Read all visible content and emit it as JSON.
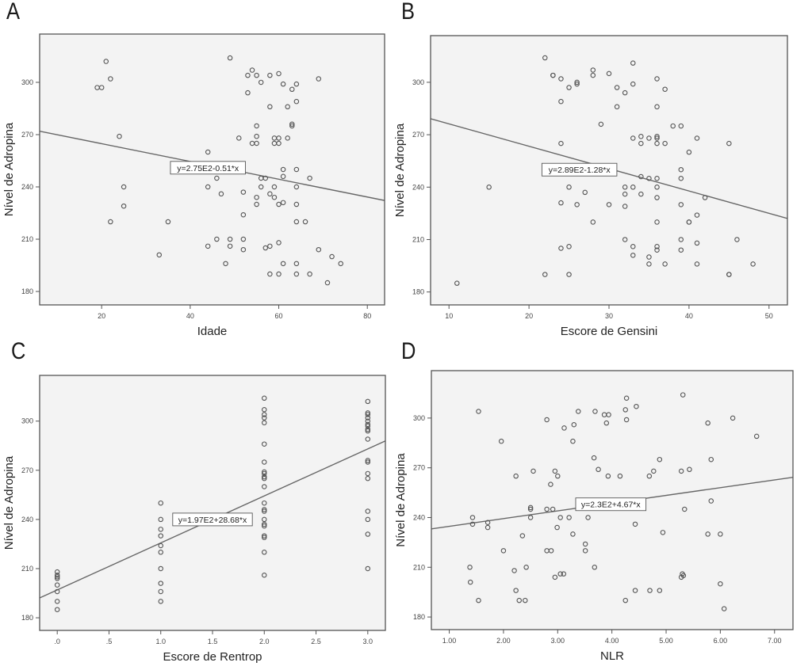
{
  "figure": {
    "panels": [
      "A",
      "B",
      "C",
      "D"
    ]
  },
  "chart_data": [
    {
      "id": "A",
      "type": "scatter",
      "panel_label": "A",
      "title": "",
      "xlabel": "Idade",
      "ylabel": "Nível de Adropina",
      "xlim": [
        6.0,
        83.9
      ],
      "ylim": [
        172.3,
        327.7
      ],
      "xticks": [
        20,
        40,
        60,
        80
      ],
      "xtick_labels": [
        "20",
        "40",
        "60",
        "80"
      ],
      "yticks": [
        180,
        210,
        240,
        270,
        300
      ],
      "ytick_labels": [
        "180",
        "210",
        "240",
        "270",
        "300"
      ],
      "grid": false,
      "regression": {
        "intercept": 275,
        "slope": -0.51,
        "label": "y=2.75E2-0.51*x",
        "label_at": [
          44,
          251
        ]
      },
      "points": [
        [
          21,
          312
        ],
        [
          22,
          302
        ],
        [
          19,
          297
        ],
        [
          20,
          297
        ],
        [
          24,
          269
        ],
        [
          25,
          240
        ],
        [
          25,
          229
        ],
        [
          22,
          220
        ],
        [
          35,
          220
        ],
        [
          33,
          201
        ],
        [
          49,
          314
        ],
        [
          54,
          307
        ],
        [
          53,
          304
        ],
        [
          55,
          304
        ],
        [
          58,
          304
        ],
        [
          60,
          305
        ],
        [
          56,
          300
        ],
        [
          61,
          299
        ],
        [
          64,
          299
        ],
        [
          63,
          296
        ],
        [
          53,
          294
        ],
        [
          69,
          302
        ],
        [
          64,
          289
        ],
        [
          58,
          286
        ],
        [
          62,
          286
        ],
        [
          55,
          275
        ],
        [
          63,
          276
        ],
        [
          63,
          275
        ],
        [
          51,
          268
        ],
        [
          55,
          269
        ],
        [
          59,
          268
        ],
        [
          60,
          268
        ],
        [
          62,
          268
        ],
        [
          54,
          265
        ],
        [
          55,
          265
        ],
        [
          59,
          265
        ],
        [
          60,
          265
        ],
        [
          44,
          260
        ],
        [
          61,
          250
        ],
        [
          64,
          250
        ],
        [
          61,
          246
        ],
        [
          46,
          245
        ],
        [
          56,
          245
        ],
        [
          57,
          245
        ],
        [
          67,
          245
        ],
        [
          44,
          240
        ],
        [
          56,
          240
        ],
        [
          59,
          240
        ],
        [
          64,
          240
        ],
        [
          47,
          236
        ],
        [
          52,
          237
        ],
        [
          58,
          236
        ],
        [
          55,
          234
        ],
        [
          59,
          234
        ],
        [
          55,
          230
        ],
        [
          60,
          230
        ],
        [
          61,
          231
        ],
        [
          64,
          230
        ],
        [
          52,
          224
        ],
        [
          64,
          220
        ],
        [
          66,
          220
        ],
        [
          46,
          210
        ],
        [
          49,
          210
        ],
        [
          52,
          210
        ],
        [
          44,
          206
        ],
        [
          49,
          206
        ],
        [
          52,
          204
        ],
        [
          57,
          205
        ],
        [
          58,
          206
        ],
        [
          60,
          208
        ],
        [
          69,
          204
        ],
        [
          72,
          200
        ],
        [
          48,
          196
        ],
        [
          61,
          196
        ],
        [
          64,
          196
        ],
        [
          74,
          196
        ],
        [
          58,
          190
        ],
        [
          60,
          190
        ],
        [
          64,
          190
        ],
        [
          67,
          190
        ],
        [
          71,
          185
        ]
      ]
    },
    {
      "id": "B",
      "type": "scatter",
      "panel_label": "B",
      "title": "",
      "xlabel": "Escore de Gensini",
      "ylabel": "Nível de Adropina",
      "xlim": [
        7.7,
        52.3
      ],
      "ylim": [
        172.6,
        326.7
      ],
      "xticks": [
        10,
        20,
        30,
        40,
        50
      ],
      "xtick_labels": [
        "10",
        "20",
        "30",
        "40",
        "50"
      ],
      "yticks": [
        180,
        210,
        240,
        270,
        300
      ],
      "ytick_labels": [
        "180",
        "210",
        "240",
        "270",
        "300"
      ],
      "grid": false,
      "regression": {
        "intercept": 289,
        "slope": -1.28,
        "label": "y=2.89E2-1.28*x",
        "label_at": [
          26.3,
          250
        ]
      },
      "points": [
        [
          22,
          314
        ],
        [
          33,
          311
        ],
        [
          23,
          304
        ],
        [
          23,
          304
        ],
        [
          28,
          307
        ],
        [
          28,
          304
        ],
        [
          30,
          305
        ],
        [
          24,
          302
        ],
        [
          36,
          302
        ],
        [
          26,
          300
        ],
        [
          26,
          299
        ],
        [
          33,
          299
        ],
        [
          25,
          297
        ],
        [
          31,
          297
        ],
        [
          32,
          294
        ],
        [
          37,
          296
        ],
        [
          24,
          289
        ],
        [
          31,
          286
        ],
        [
          36,
          286
        ],
        [
          29,
          276
        ],
        [
          38,
          275
        ],
        [
          39,
          275
        ],
        [
          33,
          268
        ],
        [
          34,
          269
        ],
        [
          35,
          268
        ],
        [
          36,
          269
        ],
        [
          36,
          268
        ],
        [
          41,
          268
        ],
        [
          24,
          265
        ],
        [
          34,
          265
        ],
        [
          36,
          265
        ],
        [
          37,
          265
        ],
        [
          45,
          265
        ],
        [
          40,
          260
        ],
        [
          39,
          250
        ],
        [
          34,
          246
        ],
        [
          35,
          245
        ],
        [
          36,
          245
        ],
        [
          39,
          245
        ],
        [
          15,
          240
        ],
        [
          25,
          240
        ],
        [
          32,
          240
        ],
        [
          33,
          240
        ],
        [
          36,
          240
        ],
        [
          27,
          237
        ],
        [
          32,
          236
        ],
        [
          34,
          236
        ],
        [
          36,
          234
        ],
        [
          42,
          234
        ],
        [
          24,
          231
        ],
        [
          26,
          230
        ],
        [
          30,
          230
        ],
        [
          32,
          229
        ],
        [
          39,
          230
        ],
        [
          41,
          224
        ],
        [
          28,
          220
        ],
        [
          36,
          220
        ],
        [
          40,
          220
        ],
        [
          40,
          220
        ],
        [
          32,
          210
        ],
        [
          39,
          210
        ],
        [
          46,
          210
        ],
        [
          41,
          208
        ],
        [
          24,
          205
        ],
        [
          25,
          206
        ],
        [
          33,
          206
        ],
        [
          36,
          206
        ],
        [
          36,
          204
        ],
        [
          39,
          204
        ],
        [
          33,
          201
        ],
        [
          35,
          200
        ],
        [
          35,
          196
        ],
        [
          37,
          196
        ],
        [
          41,
          196
        ],
        [
          48,
          196
        ],
        [
          22,
          190
        ],
        [
          25,
          190
        ],
        [
          45,
          190
        ],
        [
          45,
          190
        ],
        [
          11,
          185
        ]
      ]
    },
    {
      "id": "C",
      "type": "scatter",
      "panel_label": "C",
      "title": "",
      "xlabel": "Escore de Rentrop",
      "ylabel": "Nível de Adropina",
      "xlim": [
        -0.17,
        3.17
      ],
      "ylim": [
        172.3,
        327.9
      ],
      "xticks": [
        0,
        0.5,
        1.0,
        1.5,
        2.0,
        2.5,
        3.0
      ],
      "xtick_labels": [
        ".0",
        ".5",
        "1.0",
        "1.5",
        "2.0",
        "2.5",
        "3.0"
      ],
      "yticks": [
        180,
        210,
        240,
        270,
        300
      ],
      "ytick_labels": [
        "180",
        "210",
        "240",
        "270",
        "300"
      ],
      "grid": false,
      "regression": {
        "intercept": 197,
        "slope": 28.68,
        "label": "y=1.97E2+28.68*x",
        "label_at": [
          1.5,
          240
        ]
      },
      "points": [
        [
          0,
          208
        ],
        [
          0,
          206
        ],
        [
          0,
          205
        ],
        [
          0,
          204
        ],
        [
          0,
          200
        ],
        [
          0,
          196
        ],
        [
          0,
          190
        ],
        [
          0,
          185
        ],
        [
          1,
          250
        ],
        [
          1,
          240
        ],
        [
          1,
          234
        ],
        [
          1,
          230
        ],
        [
          1,
          224
        ],
        [
          1,
          220
        ],
        [
          1,
          210
        ],
        [
          1,
          201
        ],
        [
          1,
          196
        ],
        [
          1,
          190
        ],
        [
          2,
          314
        ],
        [
          2,
          307
        ],
        [
          2,
          304
        ],
        [
          2,
          302
        ],
        [
          2,
          299
        ],
        [
          2,
          286
        ],
        [
          2,
          275
        ],
        [
          2,
          269
        ],
        [
          2,
          268
        ],
        [
          2,
          266
        ],
        [
          2,
          265
        ],
        [
          2,
          260
        ],
        [
          2,
          250
        ],
        [
          2,
          246
        ],
        [
          2,
          245
        ],
        [
          2,
          240
        ],
        [
          2,
          237
        ],
        [
          2,
          236
        ],
        [
          2,
          230
        ],
        [
          2,
          229
        ],
        [
          2,
          220
        ],
        [
          2,
          206
        ],
        [
          3,
          312
        ],
        [
          3,
          305
        ],
        [
          3,
          304
        ],
        [
          3,
          302
        ],
        [
          3,
          300
        ],
        [
          3,
          298
        ],
        [
          3,
          297
        ],
        [
          3,
          295
        ],
        [
          3,
          294
        ],
        [
          3,
          289
        ],
        [
          3,
          276
        ],
        [
          3,
          275
        ],
        [
          3,
          268
        ],
        [
          3,
          265
        ],
        [
          3,
          245
        ],
        [
          3,
          240
        ],
        [
          3,
          231
        ],
        [
          3,
          210
        ]
      ]
    },
    {
      "id": "D",
      "type": "scatter",
      "panel_label": "D",
      "title": "",
      "xlabel": "NLR",
      "ylabel": "Nível de Adropina",
      "xlim": [
        0.67,
        7.34
      ],
      "ylim": [
        172.4,
        328.6
      ],
      "xticks": [
        1,
        2,
        3,
        4,
        5,
        6,
        7
      ],
      "xtick_labels": [
        "1.00",
        "2.00",
        "3.00",
        "4.00",
        "5.00",
        "6.00",
        "7.00"
      ],
      "yticks": [
        180,
        210,
        240,
        270,
        300
      ],
      "ytick_labels": [
        "180",
        "210",
        "240",
        "270",
        "300"
      ],
      "grid": false,
      "regression": {
        "intercept": 230,
        "slope": 4.67,
        "label": "y=2.3E2+4.67*x",
        "label_at": [
          3.98,
          248
        ]
      },
      "points": [
        [
          1.54,
          304
        ],
        [
          2.8,
          299
        ],
        [
          3.38,
          304
        ],
        [
          3.69,
          304
        ],
        [
          3.86,
          302
        ],
        [
          3.94,
          302
        ],
        [
          3.9,
          297
        ],
        [
          3.12,
          294
        ],
        [
          3.3,
          296
        ],
        [
          4.27,
          312
        ],
        [
          4.25,
          305
        ],
        [
          4.45,
          307
        ],
        [
          4.27,
          299
        ],
        [
          5.31,
          314
        ],
        [
          5.77,
          297
        ],
        [
          6.23,
          300
        ],
        [
          6.67,
          289
        ],
        [
          1.96,
          286
        ],
        [
          3.28,
          286
        ],
        [
          3.67,
          276
        ],
        [
          4.88,
          275
        ],
        [
          5.83,
          275
        ],
        [
          2.55,
          268
        ],
        [
          2.95,
          268
        ],
        [
          3.75,
          269
        ],
        [
          4.77,
          268
        ],
        [
          5.28,
          268
        ],
        [
          5.43,
          269
        ],
        [
          2.23,
          265
        ],
        [
          3.0,
          265
        ],
        [
          3.93,
          265
        ],
        [
          4.15,
          265
        ],
        [
          4.69,
          265
        ],
        [
          2.87,
          260
        ],
        [
          5.83,
          250
        ],
        [
          2.5,
          246
        ],
        [
          2.5,
          245
        ],
        [
          2.8,
          245
        ],
        [
          2.91,
          245
        ],
        [
          5.34,
          245
        ],
        [
          1.43,
          240
        ],
        [
          2.5,
          240
        ],
        [
          3.05,
          240
        ],
        [
          3.21,
          240
        ],
        [
          3.56,
          240
        ],
        [
          1.43,
          236
        ],
        [
          1.71,
          237
        ],
        [
          1.71,
          234
        ],
        [
          2.99,
          234
        ],
        [
          4.43,
          236
        ],
        [
          2.35,
          229
        ],
        [
          3.28,
          230
        ],
        [
          4.94,
          231
        ],
        [
          5.77,
          230
        ],
        [
          6.0,
          230
        ],
        [
          3.51,
          224
        ],
        [
          2.0,
          220
        ],
        [
          2.8,
          220
        ],
        [
          2.88,
          220
        ],
        [
          3.51,
          220
        ],
        [
          1.38,
          210
        ],
        [
          2.42,
          210
        ],
        [
          3.68,
          210
        ],
        [
          2.2,
          208
        ],
        [
          3.05,
          206
        ],
        [
          3.11,
          206
        ],
        [
          2.95,
          204
        ],
        [
          5.3,
          206
        ],
        [
          5.32,
          205
        ],
        [
          5.28,
          204
        ],
        [
          1.39,
          201
        ],
        [
          6.0,
          200
        ],
        [
          2.23,
          196
        ],
        [
          4.43,
          196
        ],
        [
          4.7,
          196
        ],
        [
          4.88,
          196
        ],
        [
          1.54,
          190
        ],
        [
          2.29,
          190
        ],
        [
          2.4,
          190
        ],
        [
          4.25,
          190
        ],
        [
          6.07,
          185
        ]
      ]
    }
  ],
  "colors": {
    "plot_background": "#f3f3f3",
    "frame": "#555555",
    "marker": "#555555",
    "regression_line": "#666666",
    "text": "#222222"
  }
}
